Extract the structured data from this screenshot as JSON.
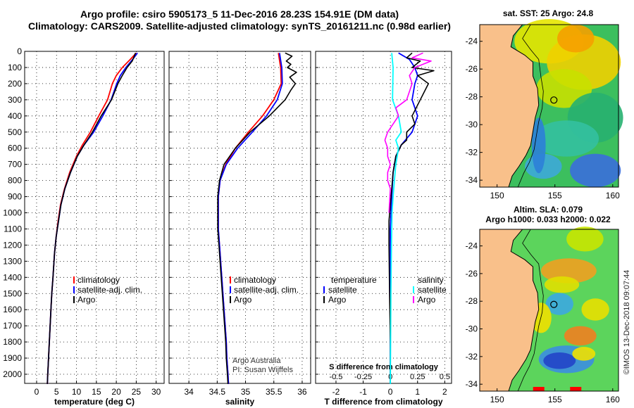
{
  "header": {
    "line1": "Argo profile: csiro 5905173_5 11-Dec-2016 28.23S 154.91E (DM data)",
    "line2": "Climatology: CARS2009. Satellite-adjusted climatology: synTS_20161211.nc (0.98d earlier)"
  },
  "map_sst": {
    "title": "sat. SST: 25 Argo: 24.8"
  },
  "map_sla": {
    "title1": "Altim. SLA: 0.079",
    "title2": "Argo h1000: 0.033 h2000: 0.022"
  },
  "credit": "©IMOS 13-Dec-2018 09:07:44",
  "footnote": {
    "line1": "Argo Australia",
    "line2": "PI: Susan Wijffels"
  },
  "colors": {
    "climatology": "#ff0000",
    "satellite": "#0000ff",
    "argo": "#000000",
    "sat_sal": "#00ffff",
    "argo_sal": "#ff00ff",
    "land": "#f9c08a"
  },
  "chart_data": [
    {
      "type": "line",
      "title": "",
      "xlabel": "temperature (deg C)",
      "ylabel": "",
      "xlim": [
        -3,
        32
      ],
      "ylim": [
        2060,
        -20
      ],
      "xticks": [
        0,
        5,
        10,
        15,
        20,
        25,
        30
      ],
      "yticks": [
        0,
        100,
        200,
        300,
        400,
        500,
        600,
        700,
        800,
        900,
        1000,
        1100,
        1200,
        1300,
        1400,
        1500,
        1600,
        1700,
        1800,
        1900,
        2000
      ],
      "legend": [
        "climatology",
        "satellite-adj. clim.",
        "Argo"
      ],
      "series": [
        {
          "name": "climatology",
          "color": "#ff0000",
          "points": [
            [
              25.0,
              10
            ],
            [
              23.5,
              50
            ],
            [
              21.5,
              100
            ],
            [
              20.0,
              150
            ],
            [
              19.0,
              200
            ],
            [
              17.8,
              300
            ],
            [
              15.6,
              400
            ],
            [
              13.5,
              500
            ],
            [
              11.5,
              580
            ],
            [
              10.0,
              650
            ],
            [
              8.3,
              750
            ],
            [
              7.0,
              850
            ],
            [
              6.0,
              950
            ],
            [
              5.4,
              1050
            ],
            [
              4.9,
              1150
            ],
            [
              4.5,
              1250
            ],
            [
              4.1,
              1400
            ],
            [
              3.8,
              1500
            ],
            [
              3.6,
              1600
            ],
            [
              3.3,
              1750
            ],
            [
              3.0,
              1900
            ],
            [
              2.8,
              2000
            ],
            [
              2.7,
              2060
            ]
          ]
        },
        {
          "name": "satellite-adj. clim.",
          "color": "#0000ff",
          "points": [
            [
              25.3,
              10
            ],
            [
              24.1,
              50
            ],
            [
              22.4,
              100
            ],
            [
              21.0,
              150
            ],
            [
              20.1,
              200
            ],
            [
              18.7,
              300
            ],
            [
              16.6,
              400
            ],
            [
              14.3,
              500
            ],
            [
              11.9,
              580
            ],
            [
              10.2,
              650
            ],
            [
              8.5,
              750
            ],
            [
              7.1,
              850
            ],
            [
              6.1,
              950
            ],
            [
              5.5,
              1050
            ],
            [
              4.9,
              1150
            ],
            [
              4.5,
              1250
            ],
            [
              4.1,
              1400
            ],
            [
              3.8,
              1500
            ],
            [
              3.6,
              1600
            ],
            [
              3.3,
              1750
            ],
            [
              3.0,
              1900
            ],
            [
              2.8,
              2000
            ],
            [
              2.7,
              2060
            ]
          ]
        },
        {
          "name": "Argo",
          "color": "#000000",
          "points": [
            [
              24.8,
              10
            ],
            [
              24.5,
              30
            ],
            [
              24.0,
              60
            ],
            [
              22.7,
              100
            ],
            [
              21.5,
              150
            ],
            [
              20.4,
              200
            ],
            [
              18.8,
              300
            ],
            [
              16.2,
              400
            ],
            [
              14.0,
              500
            ],
            [
              11.9,
              580
            ],
            [
              10.2,
              650
            ],
            [
              8.5,
              750
            ],
            [
              7.1,
              850
            ],
            [
              6.1,
              950
            ],
            [
              5.5,
              1050
            ],
            [
              4.9,
              1150
            ],
            [
              4.5,
              1250
            ],
            [
              4.1,
              1400
            ],
            [
              3.8,
              1500
            ],
            [
              3.6,
              1600
            ],
            [
              3.3,
              1750
            ],
            [
              3.0,
              1900
            ],
            [
              2.8,
              2000
            ],
            [
              2.7,
              2060
            ]
          ]
        }
      ]
    },
    {
      "type": "line",
      "title": "",
      "xlabel": "salinity",
      "ylabel": "",
      "xlim": [
        33.65,
        36.15
      ],
      "ylim": [
        2060,
        -20
      ],
      "xticks": [
        34,
        34.5,
        35,
        35.5,
        36
      ],
      "yticks": [],
      "legend": [
        "climatology",
        "satellite-adj. clim.",
        "Argo"
      ],
      "series": [
        {
          "name": "climatology",
          "color": "#ff0000",
          "points": [
            [
              35.58,
              10
            ],
            [
              35.62,
              100
            ],
            [
              35.63,
              200
            ],
            [
              35.5,
              300
            ],
            [
              35.3,
              400
            ],
            [
              35.05,
              500
            ],
            [
              34.82,
              600
            ],
            [
              34.65,
              700
            ],
            [
              34.55,
              800
            ],
            [
              34.52,
              900
            ],
            [
              34.52,
              1000
            ],
            [
              34.52,
              1100
            ],
            [
              34.54,
              1200
            ],
            [
              34.56,
              1300
            ],
            [
              34.58,
              1400
            ],
            [
              34.6,
              1500
            ],
            [
              34.62,
              1600
            ],
            [
              34.64,
              1700
            ],
            [
              34.66,
              1800
            ],
            [
              34.67,
              1900
            ],
            [
              34.69,
              2000
            ],
            [
              34.7,
              2060
            ]
          ]
        },
        {
          "name": "satellite-adj. clim.",
          "color": "#0000ff",
          "points": [
            [
              35.6,
              10
            ],
            [
              35.64,
              100
            ],
            [
              35.65,
              200
            ],
            [
              35.56,
              300
            ],
            [
              35.37,
              400
            ],
            [
              35.12,
              500
            ],
            [
              34.86,
              600
            ],
            [
              34.66,
              700
            ],
            [
              34.55,
              800
            ],
            [
              34.52,
              900
            ],
            [
              34.52,
              1000
            ],
            [
              34.52,
              1100
            ],
            [
              34.54,
              1200
            ],
            [
              34.56,
              1300
            ],
            [
              34.58,
              1400
            ],
            [
              34.6,
              1500
            ],
            [
              34.62,
              1600
            ],
            [
              34.64,
              1700
            ],
            [
              34.66,
              1800
            ],
            [
              34.67,
              1900
            ],
            [
              34.69,
              2000
            ],
            [
              34.7,
              2060
            ]
          ]
        },
        {
          "name": "Argo",
          "color": "#000000",
          "points": [
            [
              35.7,
              10
            ],
            [
              35.82,
              30
            ],
            [
              35.72,
              60
            ],
            [
              35.8,
              80
            ],
            [
              35.74,
              100
            ],
            [
              35.9,
              130
            ],
            [
              35.78,
              160
            ],
            [
              35.88,
              200
            ],
            [
              35.8,
              240
            ],
            [
              35.7,
              300
            ],
            [
              35.42,
              400
            ],
            [
              35.08,
              500
            ],
            [
              34.82,
              600
            ],
            [
              34.62,
              700
            ],
            [
              34.54,
              800
            ],
            [
              34.51,
              900
            ],
            [
              34.51,
              1000
            ],
            [
              34.51,
              1100
            ],
            [
              34.53,
              1200
            ],
            [
              34.55,
              1300
            ],
            [
              34.57,
              1400
            ],
            [
              34.59,
              1500
            ],
            [
              34.61,
              1600
            ],
            [
              34.63,
              1700
            ],
            [
              34.65,
              1800
            ],
            [
              34.66,
              1900
            ],
            [
              34.68,
              2000
            ],
            [
              34.69,
              2060
            ]
          ]
        }
      ]
    },
    {
      "type": "line",
      "title": "",
      "xlabel": "T difference from climatology",
      "xlabel_top": "S difference from climatology",
      "ylabel": "",
      "xlim": [
        -2.75,
        2.25
      ],
      "ylim": [
        2060,
        -20
      ],
      "xticks": [
        -2,
        -1,
        0,
        1,
        2
      ],
      "xticks_top_labels": [
        "-0.5",
        "-0.25",
        "0",
        "0.25",
        "0.5"
      ],
      "xticks_top_positions": [
        -2,
        -1,
        0,
        1,
        2
      ],
      "yticks": [],
      "legend_left": [
        "temperature",
        "satellite",
        "Argo"
      ],
      "legend_right": [
        "salinity",
        "satellite",
        "Argo"
      ],
      "series": [
        {
          "name": "temperature satellite",
          "color": "#0000ff",
          "points": [
            [
              0.3,
              10
            ],
            [
              0.7,
              50
            ],
            [
              0.9,
              100
            ],
            [
              1.0,
              150
            ],
            [
              0.9,
              200
            ],
            [
              0.8,
              300
            ],
            [
              1.0,
              400
            ],
            [
              0.8,
              500
            ],
            [
              0.4,
              580
            ],
            [
              0.2,
              650
            ],
            [
              0.1,
              750
            ],
            [
              0.05,
              900
            ],
            [
              0.0,
              1100
            ],
            [
              0.0,
              2060
            ]
          ]
        },
        {
          "name": "temperature Argo",
          "color": "#000000",
          "points": [
            [
              0.8,
              10
            ],
            [
              0.6,
              40
            ],
            [
              1.1,
              60
            ],
            [
              0.8,
              100
            ],
            [
              1.6,
              120
            ],
            [
              1.0,
              150
            ],
            [
              1.4,
              200
            ],
            [
              1.1,
              300
            ],
            [
              0.8,
              400
            ],
            [
              0.9,
              450
            ],
            [
              0.6,
              500
            ],
            [
              0.6,
              550
            ],
            [
              0.4,
              580
            ],
            [
              0.2,
              650
            ],
            [
              0.1,
              750
            ],
            [
              0.05,
              850
            ],
            [
              0.0,
              950
            ],
            [
              -0.05,
              1050
            ],
            [
              -0.05,
              1200
            ],
            [
              -0.03,
              1500
            ],
            [
              0.0,
              1800
            ],
            [
              0.0,
              2060
            ]
          ]
        },
        {
          "name": "salinity satellite",
          "color": "#00ffff",
          "points": [
            [
              0.05,
              10
            ],
            [
              0.1,
              100
            ],
            [
              0.08,
              300
            ],
            [
              0.3,
              400
            ],
            [
              0.4,
              500
            ],
            [
              0.2,
              550
            ],
            [
              0.3,
              600
            ],
            [
              0.2,
              700
            ],
            [
              0.15,
              800
            ],
            [
              0.1,
              900
            ],
            [
              0.06,
              1000
            ],
            [
              0.04,
              1200
            ],
            [
              0.02,
              1500
            ],
            [
              0.0,
              2060
            ]
          ]
        },
        {
          "name": "salinity Argo",
          "color": "#ff00ff",
          "points": [
            [
              1.2,
              10
            ],
            [
              0.8,
              40
            ],
            [
              1.5,
              60
            ],
            [
              0.9,
              100
            ],
            [
              0.7,
              150
            ],
            [
              0.8,
              200
            ],
            [
              0.6,
              300
            ],
            [
              0.2,
              350
            ],
            [
              0.3,
              400
            ],
            [
              0.1,
              450
            ],
            [
              -0.1,
              500
            ],
            [
              -0.2,
              550
            ],
            [
              -0.1,
              600
            ],
            [
              -0.1,
              650
            ],
            [
              0.0,
              700
            ],
            [
              -0.1,
              750
            ],
            [
              -0.1,
              800
            ],
            [
              0.0,
              850
            ],
            [
              -0.05,
              1000
            ]
          ]
        }
      ]
    }
  ]
}
